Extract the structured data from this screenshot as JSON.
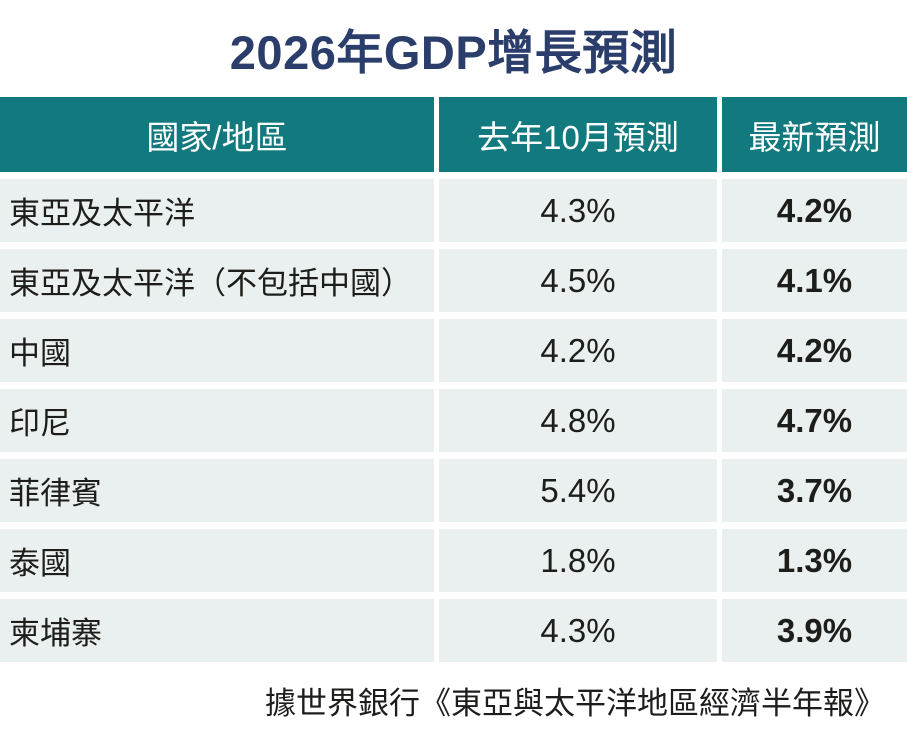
{
  "title": "2026年GDP增長預測",
  "footer": "據世界銀行《東亞與太平洋地區經濟半年報》",
  "colors": {
    "header_bg": "#127a7e",
    "header_text": "#ffffff",
    "row_bg": "#e9f0ef",
    "title_color": "#2b3e6b",
    "text_color": "#1d1d1b"
  },
  "table": {
    "headers": [
      "國家/地區",
      "去年10月預測",
      "最新預測"
    ],
    "rows": [
      {
        "region": "東亞及太平洋",
        "previous": "4.3%",
        "latest": "4.2%"
      },
      {
        "region": "東亞及太平洋（不包括中國）",
        "previous": "4.5%",
        "latest": "4.1%"
      },
      {
        "region": "中國",
        "previous": "4.2%",
        "latest": "4.2%"
      },
      {
        "region": "印尼",
        "previous": "4.8%",
        "latest": "4.7%"
      },
      {
        "region": "菲律賓",
        "previous": "5.4%",
        "latest": "3.7%"
      },
      {
        "region": "泰國",
        "previous": "1.8%",
        "latest": "1.3%"
      },
      {
        "region": "柬埔寨",
        "previous": "4.3%",
        "latest": "3.9%"
      }
    ]
  },
  "chart_data": {
    "type": "table",
    "title": "2026年GDP增長預測",
    "columns": [
      "國家/地區",
      "去年10月預測",
      "最新預測"
    ],
    "rows": [
      [
        "東亞及太平洋",
        "4.3%",
        "4.2%"
      ],
      [
        "東亞及太平洋（不包括中國）",
        "4.5%",
        "4.1%"
      ],
      [
        "中國",
        "4.2%",
        "4.2%"
      ],
      [
        "印尼",
        "4.8%",
        "4.7%"
      ],
      [
        "菲律賓",
        "5.4%",
        "3.7%"
      ],
      [
        "泰國",
        "1.8%",
        "1.3%"
      ],
      [
        "柬埔寨",
        "4.3%",
        "3.9%"
      ]
    ],
    "source_note": "據世界銀行《東亞與太平洋地區經濟半年報》",
    "units": "percent GDP growth forecast for 2026",
    "layout": {
      "header_style": "teal solid",
      "value_emphasis": "latest column bold"
    }
  }
}
